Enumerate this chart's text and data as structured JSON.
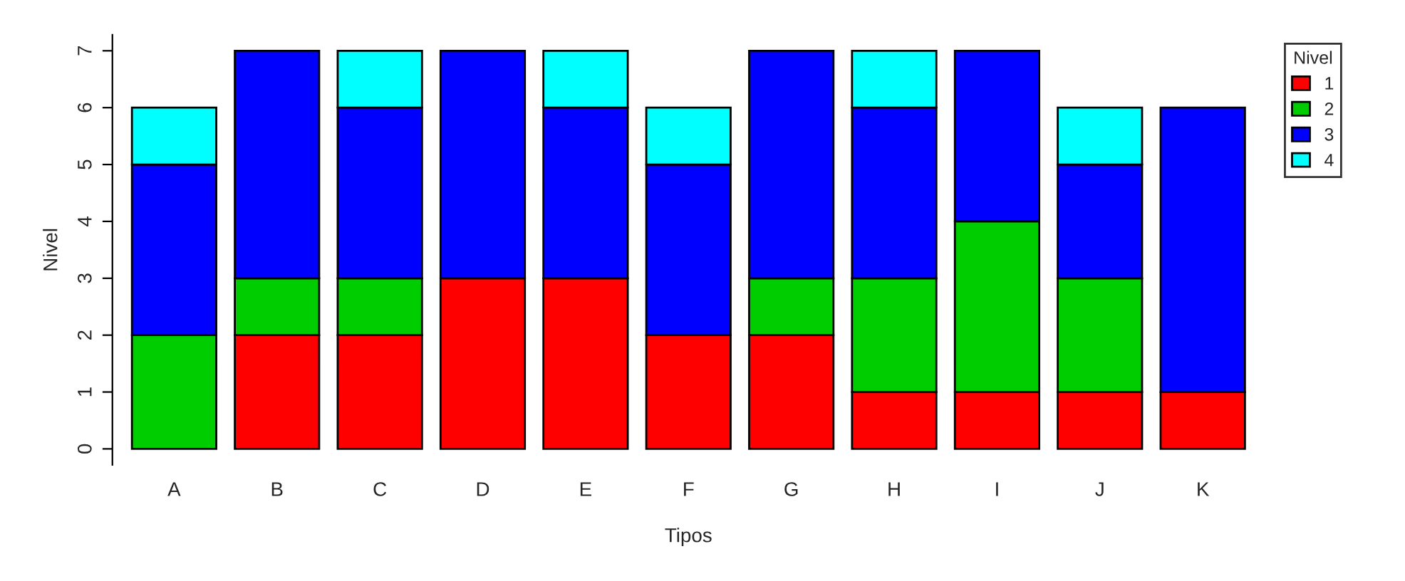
{
  "chart_data": {
    "type": "bar",
    "stacked": true,
    "xlabel": "Tipos",
    "ylabel": "Nivel",
    "legend_title": "Nivel",
    "legend": "top right",
    "grid": false,
    "categories": [
      "A",
      "B",
      "C",
      "D",
      "E",
      "F",
      "G",
      "H",
      "I",
      "J",
      "K"
    ],
    "ylim": [
      -0.28,
      7.28
    ],
    "yticks": [
      0,
      1,
      2,
      3,
      4,
      5,
      6,
      7
    ],
    "series": [
      {
        "name": "1",
        "color": "#ff0000",
        "values": [
          0,
          2,
          2,
          3,
          3,
          2,
          2,
          1,
          1,
          1,
          1
        ]
      },
      {
        "name": "2",
        "color": "#00cd00",
        "values": [
          2,
          1,
          1,
          0,
          0,
          0,
          1,
          2,
          3,
          2,
          0
        ]
      },
      {
        "name": "3",
        "color": "#0000ff",
        "values": [
          3,
          4,
          3,
          4,
          3,
          3,
          4,
          3,
          3,
          2,
          5
        ]
      },
      {
        "name": "4",
        "color": "#00ffff",
        "values": [
          1,
          0,
          1,
          0,
          1,
          1,
          0,
          1,
          0,
          1,
          0
        ]
      }
    ]
  }
}
